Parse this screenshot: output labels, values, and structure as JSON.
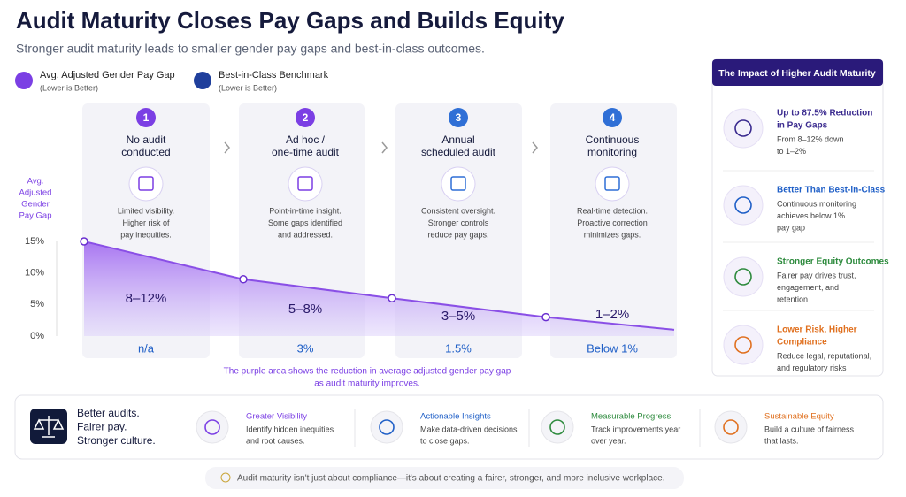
{
  "header": {
    "title": "Audit Maturity Closes Pay Gaps and Builds Equity",
    "subtitle": "Stronger audit maturity leads to smaller gender pay gaps and best-in-class outcomes."
  },
  "legend": [
    {
      "label": "Avg. Adjusted Gender Pay Gap",
      "note": "(Lower is Better)"
    },
    {
      "label": "Best-in-Class Benchmark",
      "note": "(Lower is Better)"
    }
  ],
  "stages": [
    {
      "number": "1",
      "title": [
        "No audit",
        "conducted"
      ],
      "description": [
        "Limited visibility.",
        "Higher risk of",
        "pay inequities."
      ],
      "range": "8–12%",
      "gap": "n/a"
    },
    {
      "number": "2",
      "title": [
        "Ad hoc /",
        "one-time audit"
      ],
      "description": [
        "Point-in-time insight.",
        "Some gaps identified",
        "and addressed."
      ],
      "range": "5–8%",
      "gap": "3%"
    },
    {
      "number": "3",
      "title": [
        "Annual",
        "scheduled audit"
      ],
      "description": [
        "Consistent oversight.",
        "Stronger controls",
        "reduce pay gaps."
      ],
      "range": "3–5%",
      "gap": "1.5%"
    },
    {
      "number": "4",
      "title": [
        "Continuous",
        "monitoring"
      ],
      "description": [
        "Real-time detection.",
        "Proactive correction",
        "minimizes gaps."
      ],
      "range": "1–2%",
      "gap": "Below 1%"
    }
  ],
  "chart_data": {
    "type": "area",
    "y_label": [
      "Avg.",
      "Adjusted",
      "Gender",
      "Pay Gap"
    ],
    "values": [
      15,
      9,
      6,
      3,
      1
    ],
    "color": "#8a4fe6",
    "ylim": [
      0,
      15
    ],
    "yticks": [
      {
        "value": 0,
        "label": "0%"
      },
      {
        "value": 5,
        "label": "5%"
      },
      {
        "value": 10,
        "label": "10%"
      },
      {
        "value": 15,
        "label": "15%"
      }
    ],
    "note": [
      "The purple area shows the reduction in average adjusted gender pay gap",
      "as audit maturity improves."
    ]
  },
  "impact": {
    "title": "The Impact of Higher Audit Maturity",
    "items": [
      {
        "title": [
          "Up to 87.5% Reduction",
          "in Pay Gaps"
        ],
        "description": [
          "From 8–12% down",
          "to 1–2%"
        ],
        "color": "#3b2b8f"
      },
      {
        "title": [
          "Better Than Best-in-Class"
        ],
        "description": [
          "Continuous monitoring",
          "achieves below 1%",
          "pay gap"
        ],
        "color": "#1f5fc7"
      },
      {
        "title": [
          "Stronger Equity Outcomes"
        ],
        "description": [
          "Fairer pay drives trust,",
          "engagement, and",
          "retention"
        ],
        "color": "#2e8b3e"
      },
      {
        "title": [
          "Lower Risk, Higher",
          "Compliance"
        ],
        "description": [
          "Reduce legal, reputational,",
          "and regulatory risks"
        ],
        "color": "#e0701f"
      }
    ]
  },
  "bottom": {
    "slogan": [
      "Better audits.",
      "Fairer pay.",
      "Stronger culture."
    ],
    "items": [
      {
        "title": "Greater Visibility",
        "description": [
          "Identify hidden inequities",
          "and root causes."
        ],
        "color": "#7b3fe4"
      },
      {
        "title": "Actionable Insights",
        "description": [
          "Make data-driven decisions",
          "to close gaps."
        ],
        "color": "#1f5fc7"
      },
      {
        "title": "Measurable Progress",
        "description": [
          "Track improvements year",
          "over year."
        ],
        "color": "#2e8b3e"
      },
      {
        "title": "Sustainable Equity",
        "description": [
          "Build a culture of fairness",
          "that lasts."
        ],
        "color": "#e0701f"
      }
    ]
  },
  "footer": "Audit maturity isn't just about compliance—it's about creating a fairer, stronger, and more inclusive workplace."
}
